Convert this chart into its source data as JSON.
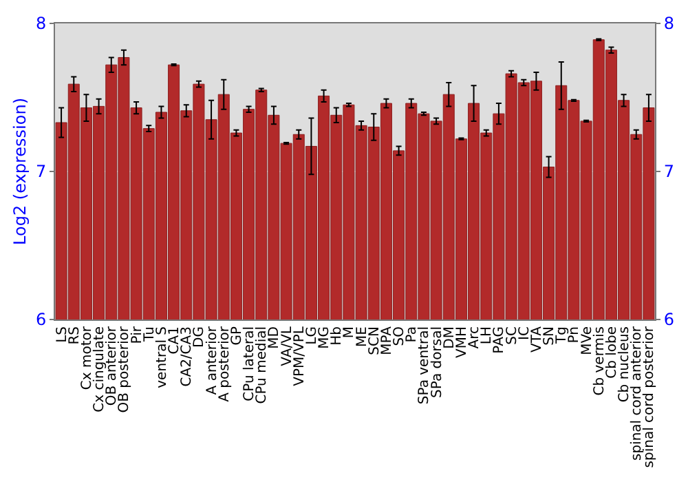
{
  "chart_data": {
    "type": "bar",
    "ylabel": "Log2 (expression)",
    "categories": [
      "LS",
      "RS",
      "Cx motor",
      "Cx cingulate",
      "OB anterior",
      "OB posterior",
      "Pir",
      "Tu",
      "ventral S",
      "CA1",
      "CA2/CA3",
      "DG",
      "A anterior",
      "A posterior",
      "GP",
      "CPu lateral",
      "CPu medial",
      "MD",
      "VA/VL",
      "VPM/VPL",
      "LG",
      "MG",
      "Hb",
      "M",
      "ME",
      "SCN",
      "MPA",
      "SO",
      "Pa",
      "SPa ventral",
      "SPa dorsal",
      "DM",
      "VMH",
      "Arc",
      "LH",
      "PAG",
      "SC",
      "IC",
      "VTA",
      "SN",
      "Tg",
      "Pn",
      "MVe",
      "Cb vermis",
      "Cb lobe",
      "Cb nucleus",
      "spinal cord anterior",
      "spinal cord posterior"
    ],
    "values": [
      7.33,
      7.59,
      7.43,
      7.44,
      7.72,
      7.77,
      7.43,
      7.29,
      7.4,
      7.72,
      7.41,
      7.59,
      7.35,
      7.52,
      7.26,
      7.42,
      7.55,
      7.38,
      7.19,
      7.25,
      7.17,
      7.51,
      7.38,
      7.45,
      7.31,
      7.3,
      7.46,
      7.14,
      7.46,
      7.39,
      7.34,
      7.52,
      7.22,
      7.46,
      7.26,
      7.39,
      7.66,
      7.6,
      7.61,
      7.03,
      7.58,
      7.48,
      7.34,
      7.89,
      7.82,
      7.48,
      7.25,
      7.43
    ],
    "errors": [
      0.1,
      0.05,
      0.09,
      0.05,
      0.05,
      0.05,
      0.04,
      0.02,
      0.04,
      0.005,
      0.04,
      0.02,
      0.13,
      0.1,
      0.02,
      0.02,
      0.01,
      0.06,
      0.005,
      0.03,
      0.19,
      0.04,
      0.05,
      0.01,
      0.03,
      0.09,
      0.03,
      0.03,
      0.03,
      0.01,
      0.02,
      0.08,
      0.005,
      0.12,
      0.02,
      0.07,
      0.02,
      0.02,
      0.06,
      0.07,
      0.16,
      0.005,
      0.005,
      0.005,
      0.02,
      0.04,
      0.03,
      0.09
    ],
    "color": "#b22a2a",
    "ylim": [
      6,
      8
    ],
    "yticks": [
      6,
      7,
      8
    ],
    "y2lim": [
      6,
      8
    ],
    "y2ticks": [
      6,
      7,
      8
    ],
    "grid": "y"
  }
}
